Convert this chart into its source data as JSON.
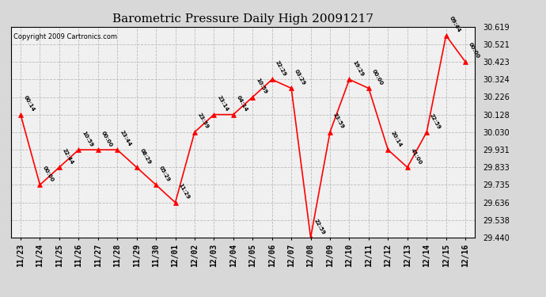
{
  "title": "Barometric Pressure Daily High 20091217",
  "copyright": "Copyright 2009 Cartronics.com",
  "x_labels": [
    "11/23",
    "11/24",
    "11/25",
    "11/26",
    "11/27",
    "11/28",
    "11/29",
    "11/30",
    "12/01",
    "12/02",
    "12/03",
    "12/04",
    "12/05",
    "12/06",
    "12/07",
    "12/08",
    "12/09",
    "12/10",
    "12/11",
    "12/12",
    "12/13",
    "12/14",
    "12/15",
    "12/16"
  ],
  "y_values": [
    30.128,
    29.735,
    29.833,
    29.931,
    29.931,
    29.931,
    29.833,
    29.735,
    29.636,
    30.03,
    30.128,
    30.128,
    30.226,
    30.324,
    30.275,
    29.44,
    30.03,
    30.324,
    30.275,
    29.931,
    29.833,
    30.03,
    30.57,
    30.423
  ],
  "point_labels": [
    "00:14",
    "00:00",
    "22:44",
    "10:59",
    "00:00",
    "23:44",
    "08:29",
    "05:29",
    "11:29",
    "23:59",
    "23:14",
    "04:14",
    "10:59",
    "22:29",
    "03:29",
    "22:59",
    "23:59",
    "19:29",
    "00:00",
    "20:14",
    "41:00",
    "22:59",
    "09:44",
    "00:00"
  ],
  "ylim_min": 29.44,
  "ylim_max": 30.619,
  "yticks": [
    29.44,
    29.538,
    29.636,
    29.735,
    29.833,
    29.931,
    30.03,
    30.128,
    30.226,
    30.324,
    30.423,
    30.521,
    30.619
  ],
  "line_color": "red",
  "marker_color": "red",
  "grid_color": "#bbbbbb",
  "bg_color": "#d8d8d8",
  "plot_bg_color": "#f0f0f0",
  "title_fontsize": 11,
  "label_fontsize": 7,
  "copyright_fontsize": 6
}
